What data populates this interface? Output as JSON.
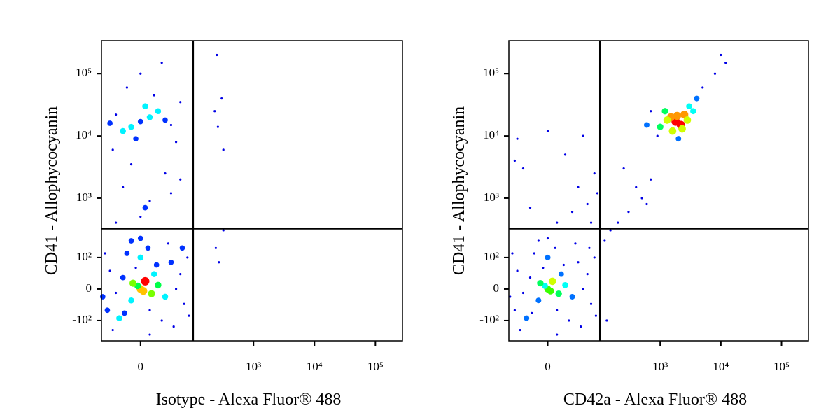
{
  "chart_data": [
    {
      "type": "scatter",
      "scale": "biexponential",
      "xlabel": "Isotype - Alexa Fluor® 488",
      "ylabel": "CD41 - Allophycocyanin",
      "xlim": [
        -58,
        278000
      ],
      "ylim": [
        -230,
        340000
      ],
      "xticks": [
        0,
        {
          "value": 1000,
          "label": "10³"
        },
        {
          "value": 10000,
          "label": "10⁴"
        },
        {
          "value": 100000,
          "label": "10⁵"
        }
      ],
      "yticks": [
        {
          "value": -100,
          "label": "-10²"
        },
        0,
        {
          "value": 100,
          "label": "10²"
        },
        {
          "value": 1000,
          "label": "10³"
        },
        {
          "value": 10000,
          "label": "10⁴"
        },
        {
          "value": 100000,
          "label": "10⁵"
        }
      ],
      "quadrant": {
        "x": 100,
        "y": 320
      },
      "x": [
        0,
        5,
        -10,
        15,
        -5,
        10,
        20,
        -20,
        30,
        -30,
        0,
        8,
        -15,
        40,
        -40,
        25,
        -25,
        50,
        -45,
        60,
        70,
        -50,
        35,
        -35,
        80,
        10,
        0,
        45,
        -10,
        65,
        85,
        -55,
        3,
        -3,
        12,
        -8,
        18,
        -18,
        0,
        10,
        -10,
        20,
        -20,
        30,
        -30,
        5,
        -5,
        40,
        -40,
        15,
        -15,
        50,
        0,
        25,
        -35,
        60,
        0,
        10,
        -20,
        30,
        -10,
        5,
        40,
        -30,
        60,
        250,
        300,
        230,
        260,
        320,
        320,
        240,
        270
      ],
      "values": [
        0,
        20,
        -30,
        40,
        60,
        -60,
        10,
        30,
        -20,
        -10,
        100,
        150,
        120,
        80,
        50,
        -100,
        -90,
        0,
        -60,
        40,
        -40,
        120,
        180,
        -150,
        100,
        -180,
        220,
        -130,
        200,
        150,
        -80,
        -20,
        -5,
        8,
        -12,
        15,
        70,
        -70,
        17000,
        20000,
        14000,
        25000,
        12000,
        18000,
        22000,
        30000,
        9000,
        15000,
        16000,
        45000,
        60000,
        8000,
        100000,
        150000,
        6000,
        35000,
        500,
        900,
        1500,
        2500,
        3500,
        700,
        1200,
        400,
        2000,
        200000,
        40000,
        25000,
        14000,
        6000,
        300,
        150,
        80
      ]
    },
    {
      "type": "scatter",
      "scale": "biexponential",
      "xlabel": "CD42a - Alexa Fluor® 488",
      "ylabel": "CD41 - Allophycocyanin",
      "xlim": [
        -58,
        278000
      ],
      "ylim": [
        -230,
        340000
      ],
      "xticks": [
        0,
        {
          "value": 1000,
          "label": "10³"
        },
        {
          "value": 10000,
          "label": "10⁴"
        },
        {
          "value": 100000,
          "label": "10⁵"
        }
      ],
      "yticks": [
        {
          "value": -100,
          "label": "-10²"
        },
        0,
        {
          "value": 100,
          "label": "10²"
        },
        {
          "value": 1000,
          "label": "10³"
        },
        {
          "value": 10000,
          "label": "10⁴"
        },
        {
          "value": 100000,
          "label": "10⁵"
        }
      ],
      "quadrant": {
        "x": 100,
        "y": 320
      },
      "x": [
        0,
        5,
        -10,
        15,
        -5,
        10,
        20,
        -20,
        30,
        -30,
        0,
        8,
        -15,
        40,
        -40,
        25,
        -25,
        50,
        -45,
        60,
        70,
        -50,
        35,
        -35,
        80,
        10,
        0,
        45,
        -10,
        65,
        85,
        -55,
        3,
        -3,
        12,
        -8,
        18,
        -18,
        1800,
        1500,
        2200,
        1200,
        2500,
        1000,
        3000,
        1600,
        2000,
        4000,
        5000,
        8000,
        700,
        600,
        2800,
        1300,
        1900,
        2300,
        10000,
        12000,
        900,
        3500,
        -40,
        -30,
        0,
        20,
        40,
        60,
        -20,
        10,
        80,
        50,
        -45,
        30,
        70,
        90,
        200,
        300,
        500,
        700,
        400,
        250,
        600,
        150,
        120,
        130
      ],
      "values": [
        0,
        20,
        -30,
        40,
        60,
        -60,
        10,
        30,
        -20,
        -10,
        100,
        150,
        120,
        80,
        50,
        -100,
        -90,
        0,
        -60,
        40,
        -40,
        120,
        180,
        -150,
        100,
        -180,
        220,
        -130,
        200,
        150,
        -80,
        -20,
        -5,
        8,
        -12,
        15,
        70,
        -70,
        17000,
        20000,
        15000,
        25000,
        22000,
        14000,
        30000,
        12000,
        9000,
        40000,
        60000,
        100000,
        25000,
        15000,
        18000,
        18000,
        21000,
        13000,
        200000,
        150000,
        10000,
        25000,
        9000,
        3000,
        12000,
        5000,
        1500,
        800,
        700,
        400,
        2500,
        10000,
        4000,
        600,
        400,
        1200,
        400,
        600,
        1000,
        2000,
        1500,
        3000,
        800,
        300,
        200,
        -100
      ]
    }
  ]
}
